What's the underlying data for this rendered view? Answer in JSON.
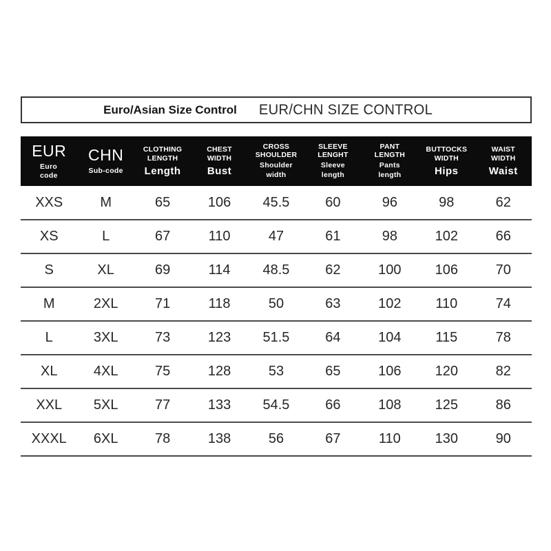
{
  "titlebar": {
    "left_title": "Euro/Asian Size Control",
    "right_title": "EUR/CHN SIZE CONTROL"
  },
  "size_table": {
    "headers": [
      {
        "code": "EUR",
        "label": "Euro\ncode"
      },
      {
        "code": "CHN",
        "label": "Sub-code"
      },
      {
        "code": "CLOTHING\nLENGTH",
        "label": "Length"
      },
      {
        "code": "CHEST\nWIDTH",
        "label": "Bust"
      },
      {
        "code": "CROSS\nSHOULDER",
        "label": "Shoulder\nwidth"
      },
      {
        "code": "SLEEVE\nLENGHT",
        "label": "Sleeve\nlength"
      },
      {
        "code": "PANT\nLENGTH",
        "label": "Pants\nlength"
      },
      {
        "code": "BUTTOCKS\nWIDTH",
        "label": "Hips"
      },
      {
        "code": "WAIST\nWIDTH",
        "label": "Waist"
      }
    ],
    "rows": [
      [
        "XXS",
        "M",
        "65",
        "106",
        "45.5",
        "60",
        "96",
        "98",
        "62"
      ],
      [
        "XS",
        "L",
        "67",
        "110",
        "47",
        "61",
        "98",
        "102",
        "66"
      ],
      [
        "S",
        "XL",
        "69",
        "114",
        "48.5",
        "62",
        "100",
        "106",
        "70"
      ],
      [
        "M",
        "2XL",
        "71",
        "118",
        "50",
        "63",
        "102",
        "110",
        "74"
      ],
      [
        "L",
        "3XL",
        "73",
        "123",
        "51.5",
        "64",
        "104",
        "115",
        "78"
      ],
      [
        "XL",
        "4XL",
        "75",
        "128",
        "53",
        "65",
        "106",
        "120",
        "82"
      ],
      [
        "XXL",
        "5XL",
        "77",
        "133",
        "54.5",
        "66",
        "108",
        "125",
        "86"
      ],
      [
        "XXXL",
        "6XL",
        "78",
        "138",
        "56",
        "67",
        "110",
        "130",
        "90"
      ]
    ]
  },
  "colors": {
    "header_bg": "#0c0c0c",
    "header_text": "#ffffff",
    "divider": "#4a4a4a",
    "body_text": "#262626",
    "title_border": "#333333"
  }
}
